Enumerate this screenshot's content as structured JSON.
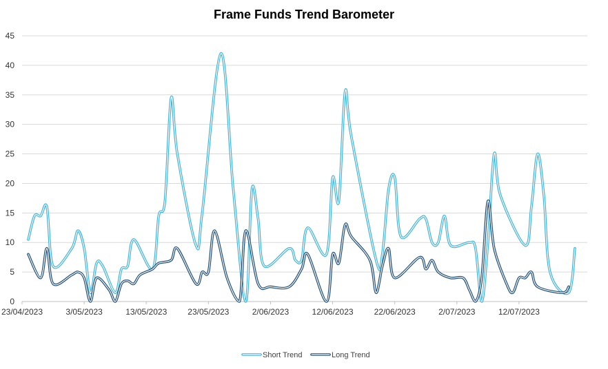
{
  "chart_data": {
    "type": "line",
    "title": "Frame Funds Trend Barometer",
    "xlabel": "",
    "ylabel": "",
    "ylim": [
      0,
      45
    ],
    "y_ticks": [
      "0",
      "5",
      "10",
      "15",
      "20",
      "25",
      "30",
      "35",
      "40",
      "45"
    ],
    "x_range": [
      "2023-04-23",
      "2023-07-23"
    ],
    "x_ticks": [
      {
        "date": "2023-04-23",
        "label": "23/04/2023"
      },
      {
        "date": "2023-05-03",
        "label": "3/05/2023"
      },
      {
        "date": "2023-05-13",
        "label": "13/05/2023"
      },
      {
        "date": "2023-05-23",
        "label": "23/05/2023"
      },
      {
        "date": "2023-06-02",
        "label": "2/06/2023"
      },
      {
        "date": "2023-06-12",
        "label": "12/06/2023"
      },
      {
        "date": "2023-06-22",
        "label": "22/06/2023"
      },
      {
        "date": "2023-07-02",
        "label": "2/07/2023"
      },
      {
        "date": "2023-07-12",
        "label": "12/07/2023"
      }
    ],
    "grid": true,
    "legend_position": "bottom",
    "series": [
      {
        "name": "Short Trend",
        "color": "#3fb4df",
        "points": [
          [
            "2023-04-24",
            10.5
          ],
          [
            "2023-04-25",
            14.5
          ],
          [
            "2023-04-26",
            14.5
          ],
          [
            "2023-04-27",
            16
          ],
          [
            "2023-04-28",
            6
          ],
          [
            "2023-05-01",
            9
          ],
          [
            "2023-05-02",
            12
          ],
          [
            "2023-05-03",
            9
          ],
          [
            "2023-05-04",
            1.5
          ],
          [
            "2023-05-05",
            6.5
          ],
          [
            "2023-05-06",
            6
          ],
          [
            "2023-05-08",
            1.5
          ],
          [
            "2023-05-09",
            5.5
          ],
          [
            "2023-05-10",
            6
          ],
          [
            "2023-05-11",
            10.5
          ],
          [
            "2023-05-14",
            5.5
          ],
          [
            "2023-05-15",
            14.5
          ],
          [
            "2023-05-16",
            17
          ],
          [
            "2023-05-17",
            34.5
          ],
          [
            "2023-05-18",
            25
          ],
          [
            "2023-05-21",
            9.5
          ],
          [
            "2023-05-22",
            15
          ],
          [
            "2023-05-25",
            42
          ],
          [
            "2023-05-27",
            19
          ],
          [
            "2023-05-29",
            0
          ],
          [
            "2023-05-30",
            19
          ],
          [
            "2023-05-31",
            14
          ],
          [
            "2023-06-01",
            6
          ],
          [
            "2023-06-05",
            9
          ],
          [
            "2023-06-06",
            7
          ],
          [
            "2023-06-07",
            7
          ],
          [
            "2023-06-08",
            12.5
          ],
          [
            "2023-06-11",
            8
          ],
          [
            "2023-06-12",
            21
          ],
          [
            "2023-06-13",
            17
          ],
          [
            "2023-06-14",
            35.5
          ],
          [
            "2023-06-15",
            28
          ],
          [
            "2023-06-19",
            7
          ],
          [
            "2023-06-20",
            8
          ],
          [
            "2023-06-21",
            19
          ],
          [
            "2023-06-22",
            21
          ],
          [
            "2023-06-23",
            11
          ],
          [
            "2023-06-26",
            14
          ],
          [
            "2023-06-27",
            14
          ],
          [
            "2023-06-28",
            10
          ],
          [
            "2023-06-29",
            10
          ],
          [
            "2023-06-30",
            14.5
          ],
          [
            "2023-07-01",
            9.5
          ],
          [
            "2023-07-04",
            10
          ],
          [
            "2023-07-05",
            9
          ],
          [
            "2023-07-06",
            0
          ],
          [
            "2023-07-07",
            10
          ],
          [
            "2023-07-08",
            25
          ],
          [
            "2023-07-09",
            18
          ],
          [
            "2023-07-13",
            9.5
          ],
          [
            "2023-07-14",
            16
          ],
          [
            "2023-07-15",
            25
          ],
          [
            "2023-07-16",
            18
          ],
          [
            "2023-07-17",
            5
          ],
          [
            "2023-07-20",
            1.5
          ],
          [
            "2023-07-21",
            9
          ]
        ]
      },
      {
        "name": "Long Trend",
        "color": "#1f4e79",
        "points": [
          [
            "2023-04-24",
            8
          ],
          [
            "2023-04-26",
            4
          ],
          [
            "2023-04-27",
            9
          ],
          [
            "2023-04-28",
            3
          ],
          [
            "2023-05-01",
            4.5
          ],
          [
            "2023-05-02",
            5
          ],
          [
            "2023-05-03",
            4
          ],
          [
            "2023-05-04",
            0
          ],
          [
            "2023-05-05",
            4
          ],
          [
            "2023-05-07",
            2
          ],
          [
            "2023-05-08",
            0
          ],
          [
            "2023-05-09",
            3
          ],
          [
            "2023-05-10",
            3.5
          ],
          [
            "2023-05-11",
            3
          ],
          [
            "2023-05-12",
            4.5
          ],
          [
            "2023-05-14",
            5.5
          ],
          [
            "2023-05-15",
            6.5
          ],
          [
            "2023-05-17",
            7
          ],
          [
            "2023-05-18",
            9
          ],
          [
            "2023-05-21",
            3
          ],
          [
            "2023-05-22",
            5
          ],
          [
            "2023-05-23",
            5
          ],
          [
            "2023-05-24",
            12
          ],
          [
            "2023-05-26",
            4
          ],
          [
            "2023-05-28",
            0
          ],
          [
            "2023-05-29",
            12
          ],
          [
            "2023-05-31",
            3
          ],
          [
            "2023-06-02",
            2.5
          ],
          [
            "2023-06-05",
            2.5
          ],
          [
            "2023-06-07",
            5.5
          ],
          [
            "2023-06-08",
            8
          ],
          [
            "2023-06-11",
            0
          ],
          [
            "2023-06-12",
            8
          ],
          [
            "2023-06-13",
            6.5
          ],
          [
            "2023-06-14",
            13
          ],
          [
            "2023-06-15",
            11
          ],
          [
            "2023-06-18",
            7
          ],
          [
            "2023-06-19",
            1.5
          ],
          [
            "2023-06-20",
            6
          ],
          [
            "2023-06-21",
            9
          ],
          [
            "2023-06-22",
            4
          ],
          [
            "2023-06-26",
            7.5
          ],
          [
            "2023-06-27",
            5.5
          ],
          [
            "2023-06-28",
            7
          ],
          [
            "2023-06-29",
            5
          ],
          [
            "2023-07-01",
            4
          ],
          [
            "2023-07-03",
            4
          ],
          [
            "2023-07-04",
            2
          ],
          [
            "2023-07-05",
            0
          ],
          [
            "2023-07-06",
            4
          ],
          [
            "2023-07-07",
            17
          ],
          [
            "2023-07-08",
            9
          ],
          [
            "2023-07-10",
            3
          ],
          [
            "2023-07-11",
            1.5
          ],
          [
            "2023-07-12",
            4
          ],
          [
            "2023-07-13",
            4
          ],
          [
            "2023-07-14",
            5
          ],
          [
            "2023-07-15",
            2.5
          ],
          [
            "2023-07-19",
            1.5
          ],
          [
            "2023-07-20",
            2.5
          ]
        ]
      }
    ]
  }
}
